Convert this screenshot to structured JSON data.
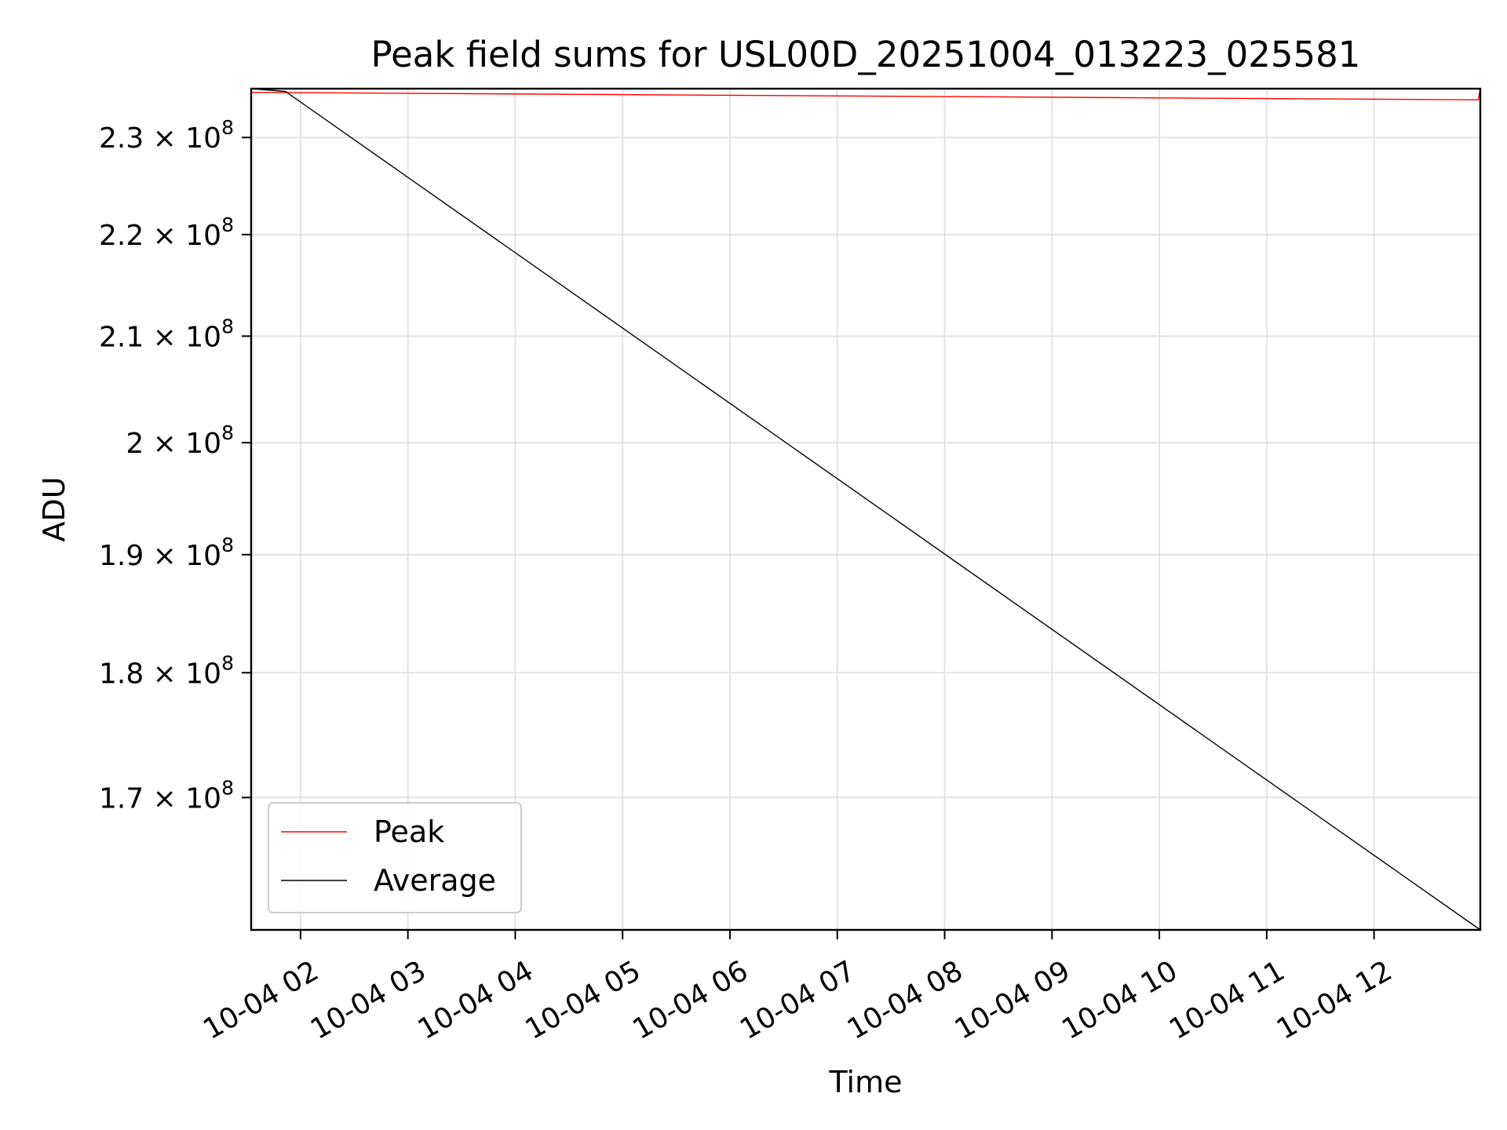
{
  "chart_data": {
    "type": "line",
    "title": "Peak field sums for USL00D_20251004_013223_025581",
    "xlabel": "Time",
    "ylabel": "ADU",
    "yscale": "log",
    "grid": true,
    "legend_position": "lower-left",
    "xlim_hours": [
      1.54,
      12.99
    ],
    "ylim": [
      160000000,
      235200000
    ],
    "x_ticks": [
      {
        "value": 2,
        "label": "10-04 02"
      },
      {
        "value": 3,
        "label": "10-04 03"
      },
      {
        "value": 4,
        "label": "10-04 04"
      },
      {
        "value": 5,
        "label": "10-04 05"
      },
      {
        "value": 6,
        "label": "10-04 06"
      },
      {
        "value": 7,
        "label": "10-04 07"
      },
      {
        "value": 8,
        "label": "10-04 08"
      },
      {
        "value": 9,
        "label": "10-04 09"
      },
      {
        "value": 10,
        "label": "10-04 10"
      },
      {
        "value": 11,
        "label": "10-04 11"
      },
      {
        "value": 12,
        "label": "10-04 12"
      }
    ],
    "y_ticks": [
      {
        "value": 170000000,
        "mantissa": "1.7 × 10",
        "exp": "8"
      },
      {
        "value": 180000000,
        "mantissa": "1.8 × 10",
        "exp": "8"
      },
      {
        "value": 190000000,
        "mantissa": "1.9 × 10",
        "exp": "8"
      },
      {
        "value": 200000000,
        "mantissa": "2 × 10",
        "exp": "8"
      },
      {
        "value": 210000000,
        "mantissa": "2.1 × 10",
        "exp": "8"
      },
      {
        "value": 220000000,
        "mantissa": "2.2 × 10",
        "exp": "8"
      },
      {
        "value": 230000000,
        "mantissa": "2.3 × 10",
        "exp": "8"
      }
    ],
    "series": [
      {
        "name": "Peak",
        "color": "#ff0000",
        "x": [
          1.54,
          12.97,
          12.99
        ],
        "y": [
          234800000,
          234000000,
          235200000
        ]
      },
      {
        "name": "Average",
        "color": "#000000",
        "x": [
          1.54,
          1.86,
          12.99,
          12.99
        ],
        "y": [
          235200000,
          234900000,
          160000000,
          235200000
        ]
      }
    ]
  }
}
